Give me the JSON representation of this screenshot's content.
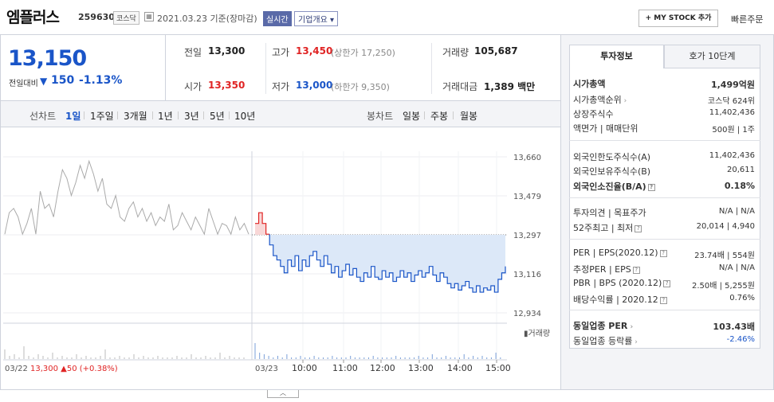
{
  "header": {
    "title": "엠플러스",
    "code": "259630",
    "market": "코스닥",
    "date": "2021.03.23 기준(장마감)",
    "realtime": "실시간",
    "company_info": "기업개요",
    "my_stock": "+ MY STOCK 추가",
    "quick_order": "빠른주문"
  },
  "price": {
    "current": "13,150",
    "change_label": "전일대비",
    "change_value": "150",
    "change_pct": "-1.13%"
  },
  "stats": {
    "prev_label": "전일",
    "prev": "13,300",
    "high_label": "고가",
    "high": "13,450",
    "upper_limit": "(상한가 17,250)",
    "volume_label": "거래량",
    "volume": "105,687",
    "open_label": "시가",
    "open": "13,350",
    "low_label": "저가",
    "low": "13,000",
    "lower_limit": "(하한가 9,350)",
    "amount_label": "거래대금",
    "amount": "1,389 백만"
  },
  "periods": {
    "line_chart": "선차트",
    "tabs": [
      "1일",
      "1주일",
      "3개월",
      "1년",
      "3년",
      "5년",
      "10년"
    ],
    "candle_chart": "봉차트",
    "candle_tabs": [
      "일봉",
      "주봉",
      "월봉"
    ]
  },
  "chart": {
    "volume_legend": "거래량",
    "prev_day_label": "03/22",
    "prev_day_price": "13,300",
    "prev_day_change": "▲50 (+0.38%)",
    "today_label": "03/23"
  },
  "chart_data": {
    "type": "line",
    "y_ticks": [
      "13,660",
      "13,479",
      "13,297",
      "13,116",
      "12,934"
    ],
    "ylim": [
      12934,
      13660
    ],
    "x_ticks": [
      "10:00",
      "11:00",
      "12:00",
      "13:00",
      "14:00",
      "15:00"
    ],
    "reference_price": 13297,
    "prev_day_series": [
      13300,
      13400,
      13420,
      13380,
      13300,
      13350,
      13420,
      13300,
      13500,
      13420,
      13440,
      13380,
      13500,
      13600,
      13560,
      13480,
      13540,
      13620,
      13560,
      13640,
      13580,
      13500,
      13560,
      13440,
      13420,
      13480,
      13380,
      13360,
      13420,
      13450,
      13380,
      13420,
      13360,
      13400,
      13340,
      13380,
      13360,
      13440,
      13320,
      13340,
      13400,
      13360,
      13320,
      13380,
      13340,
      13300,
      13420,
      13360,
      13300,
      13350,
      13340,
      13300,
      13380,
      13320,
      13350,
      13300
    ],
    "today_series": [
      13350,
      13400,
      13350,
      13300,
      13250,
      13200,
      13180,
      13150,
      13120,
      13180,
      13150,
      13200,
      13130,
      13180,
      13150,
      13200,
      13220,
      13180,
      13150,
      13200,
      13160,
      13120,
      13150,
      13100,
      13130,
      13160,
      13110,
      13140,
      13100,
      13080,
      13120,
      13100,
      13150,
      13100,
      13090,
      13130,
      13100,
      13120,
      13080,
      13100,
      13130,
      13100,
      13120,
      13080,
      13110,
      13130,
      13100,
      13120,
      13150,
      13110,
      13080,
      13120,
      13100,
      13070,
      13050,
      13070,
      13040,
      13060,
      13080,
      13050,
      13030,
      13060,
      13030,
      13050,
      13040,
      13060,
      13030,
      13090,
      13120,
      13150
    ]
  },
  "side": {
    "tab_invest": "투자정보",
    "tab_orderbook": "호가 10단계",
    "rows": [
      {
        "label": "시가총액",
        "value": "1,499억원"
      },
      {
        "label": "시가총액순위",
        "value": "코스닥 624위"
      },
      {
        "label": "상장주식수",
        "value": "11,402,436"
      },
      {
        "label": "액면가 | 매매단위",
        "value": "500원 | 1주"
      },
      {
        "label": "외국인한도주식수(A)",
        "value": "11,402,436"
      },
      {
        "label": "외국인보유주식수(B)",
        "value": "20,611"
      },
      {
        "label": "외국인소진율(B/A)",
        "value": "0.18%"
      },
      {
        "label": "투자의견 | 목표주가",
        "value": "N/A | N/A"
      },
      {
        "label": "52주최고 | 최저",
        "value": "20,014 | 4,940"
      },
      {
        "label": "PER | EPS(2020.12)",
        "value": "23.74배 | 554원"
      },
      {
        "label": "추정PER | EPS",
        "value": "N/A | N/A"
      },
      {
        "label": "PBR | BPS (2020.12)",
        "value": "2.50배 | 5,255원"
      },
      {
        "label": "배당수익률 | 2020.12",
        "value": "0.76%"
      },
      {
        "label": "동일업종 PER",
        "value": "103.43배"
      },
      {
        "label": "동일업종 등락률",
        "value": "-2.46%"
      }
    ]
  }
}
